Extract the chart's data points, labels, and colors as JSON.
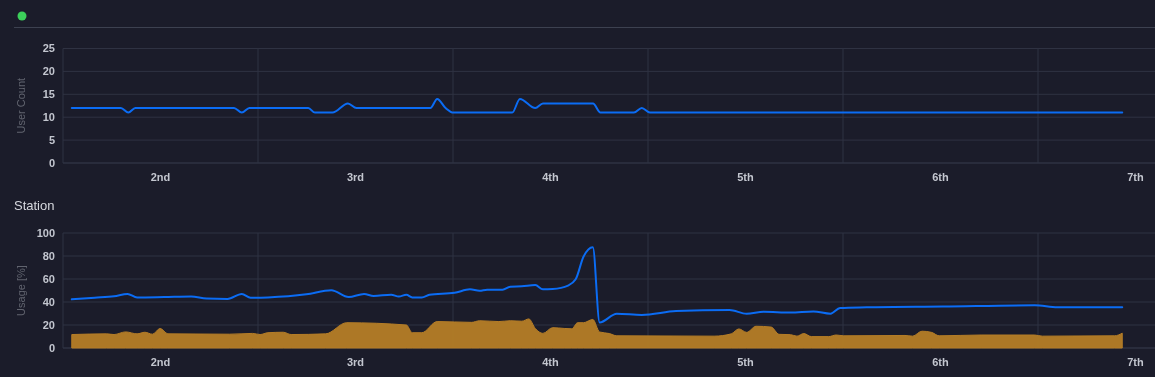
{
  "chart_data": [
    {
      "type": "line",
      "ylabel": "User Count",
      "xlim": [
        1.5,
        7.1
      ],
      "ylim": [
        0,
        25
      ],
      "yticks": [
        0,
        5,
        10,
        15,
        20,
        25
      ],
      "grid": true,
      "xticks": [
        {
          "value": 2,
          "label": "2nd"
        },
        {
          "value": 2.5,
          "label": null
        },
        {
          "value": 3,
          "label": "3rd"
        },
        {
          "value": 3.5,
          "label": null
        },
        {
          "value": 4,
          "label": "4th"
        },
        {
          "value": 4.5,
          "label": null
        },
        {
          "value": 5,
          "label": "5th"
        },
        {
          "value": 5.5,
          "label": null
        },
        {
          "value": 6,
          "label": "6th"
        },
        {
          "value": 6.5,
          "label": null
        },
        {
          "value": 7,
          "label": "7th"
        }
      ],
      "series": [
        {
          "type": "line",
          "color": "#0b6cf4",
          "x": [
            1.545,
            1.797,
            1.835,
            1.871,
            2.377,
            2.417,
            2.456,
            2.758,
            2.792,
            2.882,
            2.961,
            3.005,
            3.384,
            3.419,
            3.462,
            3.502,
            3.804,
            3.843,
            3.922,
            3.961,
            4.218,
            4.256,
            4.428,
            4.468,
            4.51,
            6.932
          ],
          "values": [
            12,
            12,
            11,
            12,
            12,
            11,
            12,
            12,
            11,
            11,
            13,
            12,
            12,
            14,
            12,
            11,
            11,
            14,
            12,
            13,
            13,
            11,
            11,
            12,
            11,
            11
          ]
        }
      ]
    },
    {
      "type": "line",
      "title": "Station",
      "ylabel": "Usage [%]",
      "xlim": [
        1.5,
        7.1
      ],
      "ylim": [
        0,
        100
      ],
      "yticks": [
        0,
        20,
        40,
        60,
        80,
        100
      ],
      "grid": true,
      "xticks": [
        {
          "value": 2,
          "label": "2nd"
        },
        {
          "value": 2.5,
          "label": null
        },
        {
          "value": 3,
          "label": "3rd"
        },
        {
          "value": 3.5,
          "label": null
        },
        {
          "value": 4,
          "label": "4th"
        },
        {
          "value": 4.5,
          "label": null
        },
        {
          "value": 5,
          "label": "5th"
        },
        {
          "value": 5.5,
          "label": null
        },
        {
          "value": 6,
          "label": "6th"
        },
        {
          "value": 6.5,
          "label": null
        },
        {
          "value": 7,
          "label": "7th"
        }
      ],
      "series": [
        {
          "type": "area",
          "color": "#b57d26",
          "x": [
            1.545,
            1.723,
            1.762,
            1.821,
            1.88,
            1.92,
            1.959,
            1.998,
            2.038,
            2.354,
            2.472,
            2.511,
            2.551,
            2.63,
            2.67,
            2.847,
            2.955,
            3.261,
            3.291,
            3.34,
            3.419,
            3.596,
            3.636,
            3.735,
            3.794,
            3.853,
            3.889,
            3.922,
            3.961,
            4.011,
            4.07,
            4.109,
            4.139,
            4.169,
            4.217,
            4.252,
            4.301,
            4.34,
            4.839,
            4.927,
            4.966,
            5.006,
            5.054,
            5.132,
            5.172,
            5.231,
            5.264,
            5.299,
            5.338,
            5.426,
            5.465,
            5.504,
            5.818,
            5.857,
            5.905,
            5.954,
            5.993,
            6.208,
            6.483,
            6.522,
            6.893,
            6.932
          ],
          "values": [
            11.7,
            12.3,
            11.7,
            14,
            12.3,
            13.7,
            12,
            17,
            12.3,
            12,
            12.7,
            11.7,
            13.3,
            13.7,
            11.7,
            12.3,
            22,
            20,
            13.3,
            13.3,
            23,
            22.3,
            23.7,
            23,
            23.7,
            23.3,
            25.3,
            17,
            12.7,
            17.7,
            17,
            16.7,
            22,
            22,
            24.8,
            13.9,
            12.6,
            10.6,
            10.3,
            12.3,
            16.6,
            13.6,
            18.9,
            18.2,
            11.9,
            11.6,
            10.3,
            12.6,
            9.9,
            9.9,
            11.3,
            10.6,
            10.9,
            10.3,
            14.6,
            13.6,
            10.6,
            11.3,
            11.3,
            10.3,
            10.6,
            12.9
          ]
        },
        {
          "type": "line",
          "color": "#0b6cf4",
          "x": [
            1.545,
            1.663,
            1.762,
            1.831,
            1.88,
            2.019,
            2.157,
            2.236,
            2.344,
            2.417,
            2.462,
            2.551,
            2.748,
            2.876,
            2.965,
            3.044,
            3.093,
            3.183,
            3.222,
            3.261,
            3.291,
            3.34,
            3.379,
            3.508,
            3.587,
            3.636,
            3.675,
            3.754,
            3.794,
            3.853,
            3.922,
            3.961,
            4.011,
            4.09,
            4.129,
            4.169,
            4.217,
            4.252,
            4.34,
            4.468,
            4.644,
            4.918,
            5.006,
            5.093,
            5.231,
            5.348,
            5.436,
            5.485,
            5.622,
            6.013,
            6.483,
            6.6,
            6.932
          ],
          "values": [
            42.3,
            43.7,
            45,
            47,
            44,
            44.3,
            44.7,
            43,
            42.7,
            47,
            43.7,
            44,
            46.7,
            50.3,
            44.3,
            47,
            45.3,
            46.3,
            44.7,
            46.3,
            44,
            44,
            46.3,
            48,
            51,
            49.7,
            50.7,
            50.7,
            53.3,
            53.7,
            54.7,
            51,
            51.3,
            54.3,
            59.7,
            79.3,
            87.7,
            22.2,
            29.8,
            28.8,
            32.1,
            33.1,
            29.8,
            31.5,
            30.8,
            31.8,
            29.8,
            34.8,
            35.4,
            36.1,
            37.1,
            35.4,
            35.4
          ]
        }
      ]
    }
  ]
}
